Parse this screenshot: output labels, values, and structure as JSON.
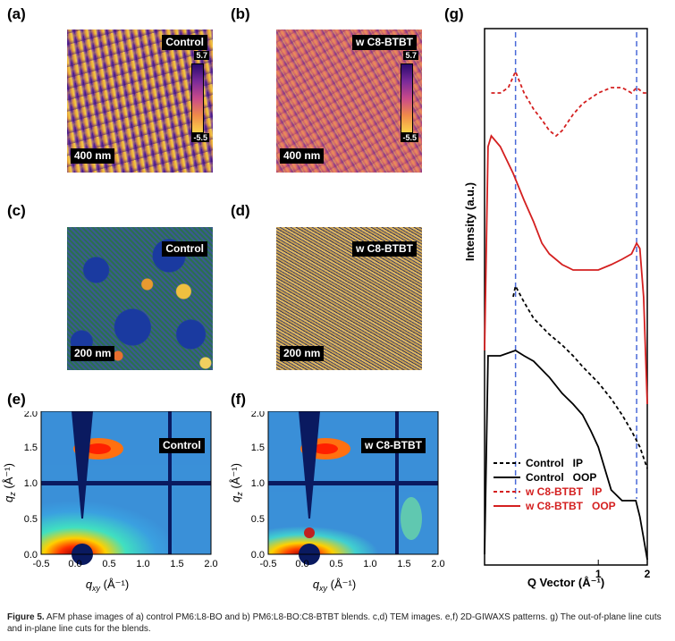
{
  "panels": {
    "a": {
      "letter": "(a)",
      "tag": "Control",
      "scale": "400 nm",
      "cbar_max": "5.7",
      "cbar_min": "-5.5"
    },
    "b": {
      "letter": "(b)",
      "tag": "w C8-BTBT",
      "scale": "400 nm",
      "cbar_max": "5.7",
      "cbar_min": "-5.5"
    },
    "c": {
      "letter": "(c)",
      "tag": "Control",
      "scale": "200 nm"
    },
    "d": {
      "letter": "(d)",
      "tag": "w C8-BTBT",
      "scale": "200 nm"
    },
    "e": {
      "letter": "(e)",
      "tag": "Control"
    },
    "f": {
      "letter": "(f)",
      "tag": "w C8-BTBT"
    },
    "g": {
      "letter": "(g)"
    }
  },
  "giwaxs_axes": {
    "x_ticks": [
      "-0.5",
      "0.0",
      "0.5",
      "1.0",
      "1.5",
      "2.0"
    ],
    "y_ticks": [
      "0.0",
      "0.5",
      "1.0",
      "1.5",
      "2.0"
    ],
    "xlabel_main": "q",
    "xlabel_sub": "xy",
    "xlabel_unit": " (Å⁻¹)",
    "ylabel_main": "q",
    "ylabel_sub": "z",
    "ylabel_unit": " (Å⁻¹)"
  },
  "chart_data": {
    "type": "line",
    "xlabel": "Q Vector (Å⁻¹)",
    "ylabel": "Intensity (a.u.)",
    "x_scale": "log",
    "x_ticks": [
      "1",
      "2"
    ],
    "reference_lines_x": [
      0.31,
      1.72
    ],
    "series": [
      {
        "name": "Control   IP",
        "color": "#000000",
        "dash": true,
        "x": [
          0.3,
          0.31,
          0.35,
          0.4,
          0.5,
          0.6,
          0.7,
          0.8,
          1.0,
          1.2,
          1.4,
          1.6,
          1.8,
          2.0
        ],
        "y": [
          0.5,
          0.52,
          0.49,
          0.46,
          0.43,
          0.41,
          0.39,
          0.37,
          0.34,
          0.31,
          0.28,
          0.25,
          0.22,
          0.18
        ]
      },
      {
        "name": "Control   OOP",
        "color": "#000000",
        "dash": false,
        "x": [
          0.2,
          0.21,
          0.25,
          0.31,
          0.35,
          0.4,
          0.5,
          0.6,
          0.7,
          0.8,
          0.9,
          1.0,
          1.2,
          1.4,
          1.6,
          1.7,
          1.8,
          1.9,
          2.0
        ],
        "y": [
          0.02,
          0.39,
          0.39,
          0.4,
          0.39,
          0.38,
          0.35,
          0.32,
          0.3,
          0.28,
          0.25,
          0.22,
          0.14,
          0.12,
          0.12,
          0.12,
          0.09,
          0.05,
          0.01
        ]
      },
      {
        "name": "w C8-BTBT   IP",
        "color": "#d42020",
        "dash": true,
        "x": [
          0.22,
          0.25,
          0.28,
          0.31,
          0.35,
          0.4,
          0.45,
          0.5,
          0.55,
          0.6,
          0.7,
          0.8,
          1.0,
          1.2,
          1.4,
          1.6,
          1.72,
          1.9,
          2.0
        ],
        "y": [
          0.88,
          0.88,
          0.89,
          0.92,
          0.88,
          0.85,
          0.83,
          0.81,
          0.8,
          0.81,
          0.84,
          0.86,
          0.88,
          0.89,
          0.89,
          0.88,
          0.89,
          0.88,
          0.88
        ]
      },
      {
        "name": "w C8-BTBT   OOP",
        "color": "#d42020",
        "dash": false,
        "x": [
          0.2,
          0.21,
          0.22,
          0.25,
          0.3,
          0.35,
          0.4,
          0.45,
          0.5,
          0.6,
          0.7,
          0.8,
          0.9,
          1.0,
          1.2,
          1.4,
          1.6,
          1.72,
          1.8,
          1.9,
          2.0
        ],
        "y": [
          0.4,
          0.78,
          0.8,
          0.78,
          0.73,
          0.68,
          0.64,
          0.6,
          0.58,
          0.56,
          0.55,
          0.55,
          0.55,
          0.55,
          0.56,
          0.57,
          0.58,
          0.6,
          0.59,
          0.5,
          0.3
        ]
      }
    ]
  },
  "caption": {
    "label": "Figure 5.",
    "text": " AFM phase images of a) control PM6:L8-BO and b) PM6:L8-BO:C8-BTBT blends. c,d) TEM images. e,f) 2D-GIWAXS patterns. g) The out-of-plane line cuts and in-plane line cuts for the blends."
  }
}
